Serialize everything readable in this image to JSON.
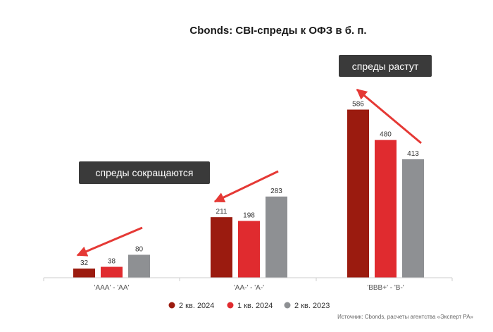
{
  "chart_data": {
    "type": "bar",
    "title": "Cbonds: CBI-спреды к ОФЗ в б. п.",
    "categories": [
      "'AAA' - 'AA'",
      "'AA-' - 'A-'",
      "'BBB+' - 'B-'"
    ],
    "series": [
      {
        "name": "2 кв. 2024",
        "color": "#9b1b0f",
        "values": [
          32,
          211,
          586
        ]
      },
      {
        "name": "1 кв. 2024",
        "color": "#e02b2f",
        "values": [
          38,
          198,
          480
        ]
      },
      {
        "name": "2 кв. 2023",
        "color": "#8e9093",
        "values": [
          80,
          283,
          413
        ]
      }
    ],
    "ylim": [
      0,
      700
    ],
    "xlabel": "",
    "ylabel": "",
    "grid": false,
    "legend": "bottom",
    "annotations": {
      "left": "спреды сокращаются",
      "right": "спреды растут"
    },
    "source": "Источник: Cbonds, расчеты агентства «Эксперт РА»"
  },
  "colors": {
    "arrow": "#e53935",
    "annotation_bg": "#3a3a3a",
    "axis": "#cccccc"
  }
}
